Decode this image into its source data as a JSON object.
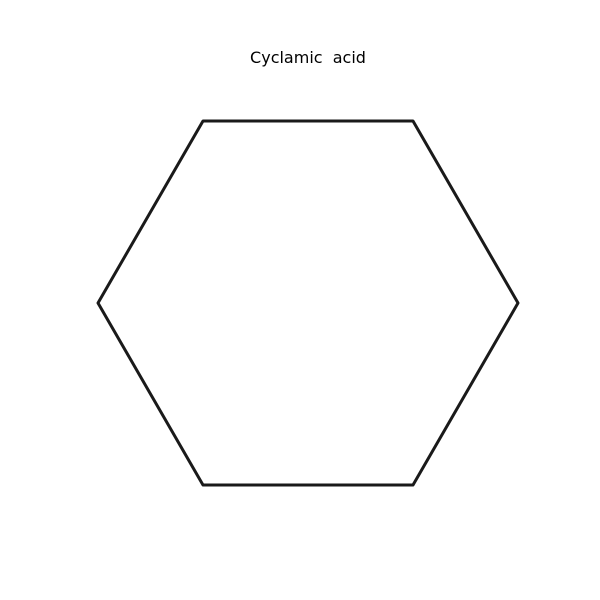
{
  "title": "Cyclamic  acid",
  "structure": {
    "ring": "cyclohexane",
    "bond_color": "#1a1a1a"
  }
}
